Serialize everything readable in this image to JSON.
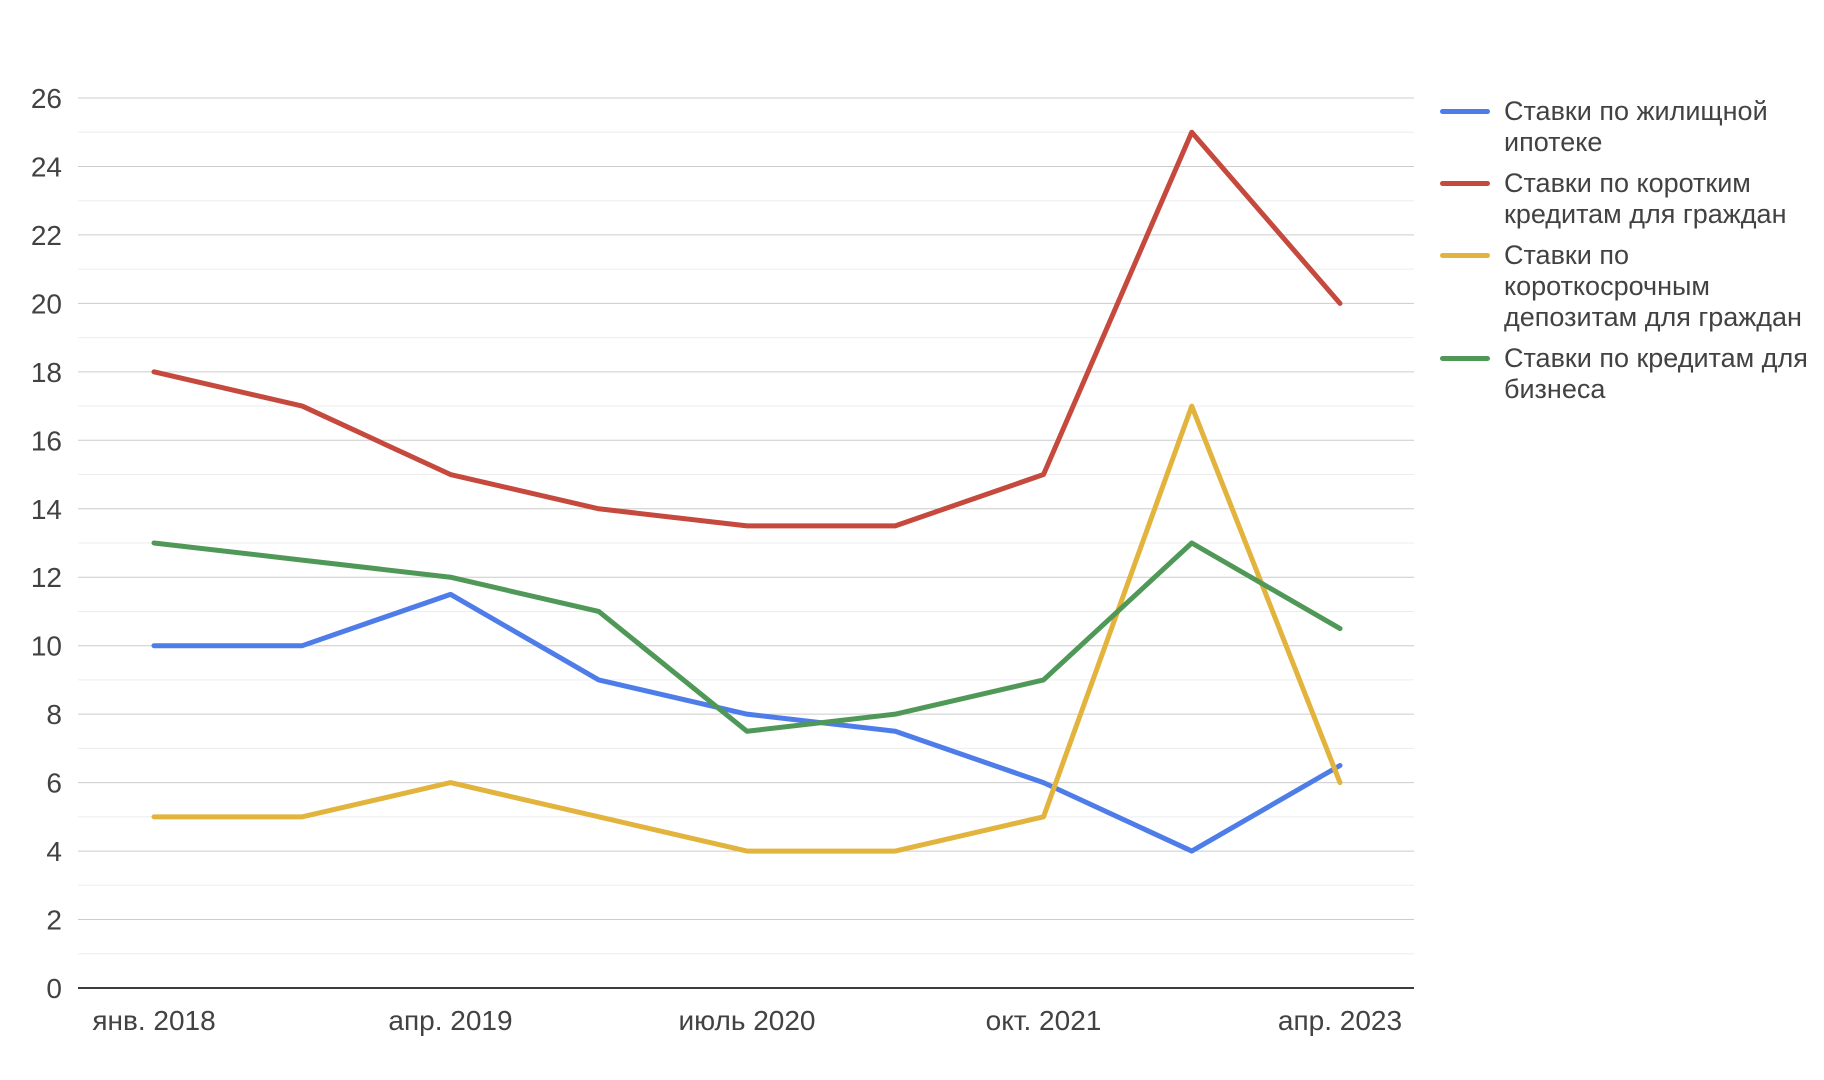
{
  "chart_data": {
    "type": "line",
    "title": "",
    "xlabel": "",
    "ylabel": "",
    "ylim": [
      0,
      26
    ],
    "ytick_step": 2,
    "grid": "major and minor horizontal gridlines",
    "legend_position": "right",
    "n_points": 9,
    "x_tick_labels": [
      "янв. 2018",
      "апр. 2019",
      "июль 2020",
      "окт. 2021",
      "апр. 2023"
    ],
    "x_tick_point_indices": [
      0,
      2,
      4,
      6,
      8
    ],
    "series": [
      {
        "name": "Ставки по жилищной ипотеке",
        "color": "#4e7ce8",
        "values": [
          10,
          10,
          11.5,
          9,
          8,
          7.5,
          6,
          4,
          6.5
        ]
      },
      {
        "name": "Ставки по коротким кредитам для граждан",
        "color": "#c5493d",
        "values": [
          18,
          17,
          15,
          14,
          13.5,
          13.5,
          15,
          25,
          20
        ]
      },
      {
        "name": "Ставки по короткосрочным депозитам для граждан",
        "color": "#e2b33d",
        "values": [
          5,
          5,
          6,
          5,
          4,
          4,
          5,
          17,
          6
        ]
      },
      {
        "name": "Ставки по кредитам для бизнеса",
        "color": "#4f9858",
        "values": [
          13,
          12.5,
          12,
          11,
          7.5,
          8,
          9,
          13,
          10.5
        ]
      }
    ],
    "legend": {
      "items": [
        {
          "series_index": 0,
          "lines": [
            "Ставки по жилищной",
            "ипотеке"
          ]
        },
        {
          "series_index": 1,
          "lines": [
            "Ставки по коротким",
            "кредитам для граждан"
          ]
        },
        {
          "series_index": 2,
          "lines": [
            "Ставки по",
            "короткосрочным",
            "депозитам для граждан"
          ]
        },
        {
          "series_index": 3,
          "lines": [
            "Ставки по кредитам для",
            "бизнеса"
          ]
        }
      ]
    },
    "colors": {
      "grid_major": "#cccccc",
      "grid_minor": "#ededed",
      "axis_line": "#3c3c3c",
      "label_text": "#424242"
    }
  }
}
